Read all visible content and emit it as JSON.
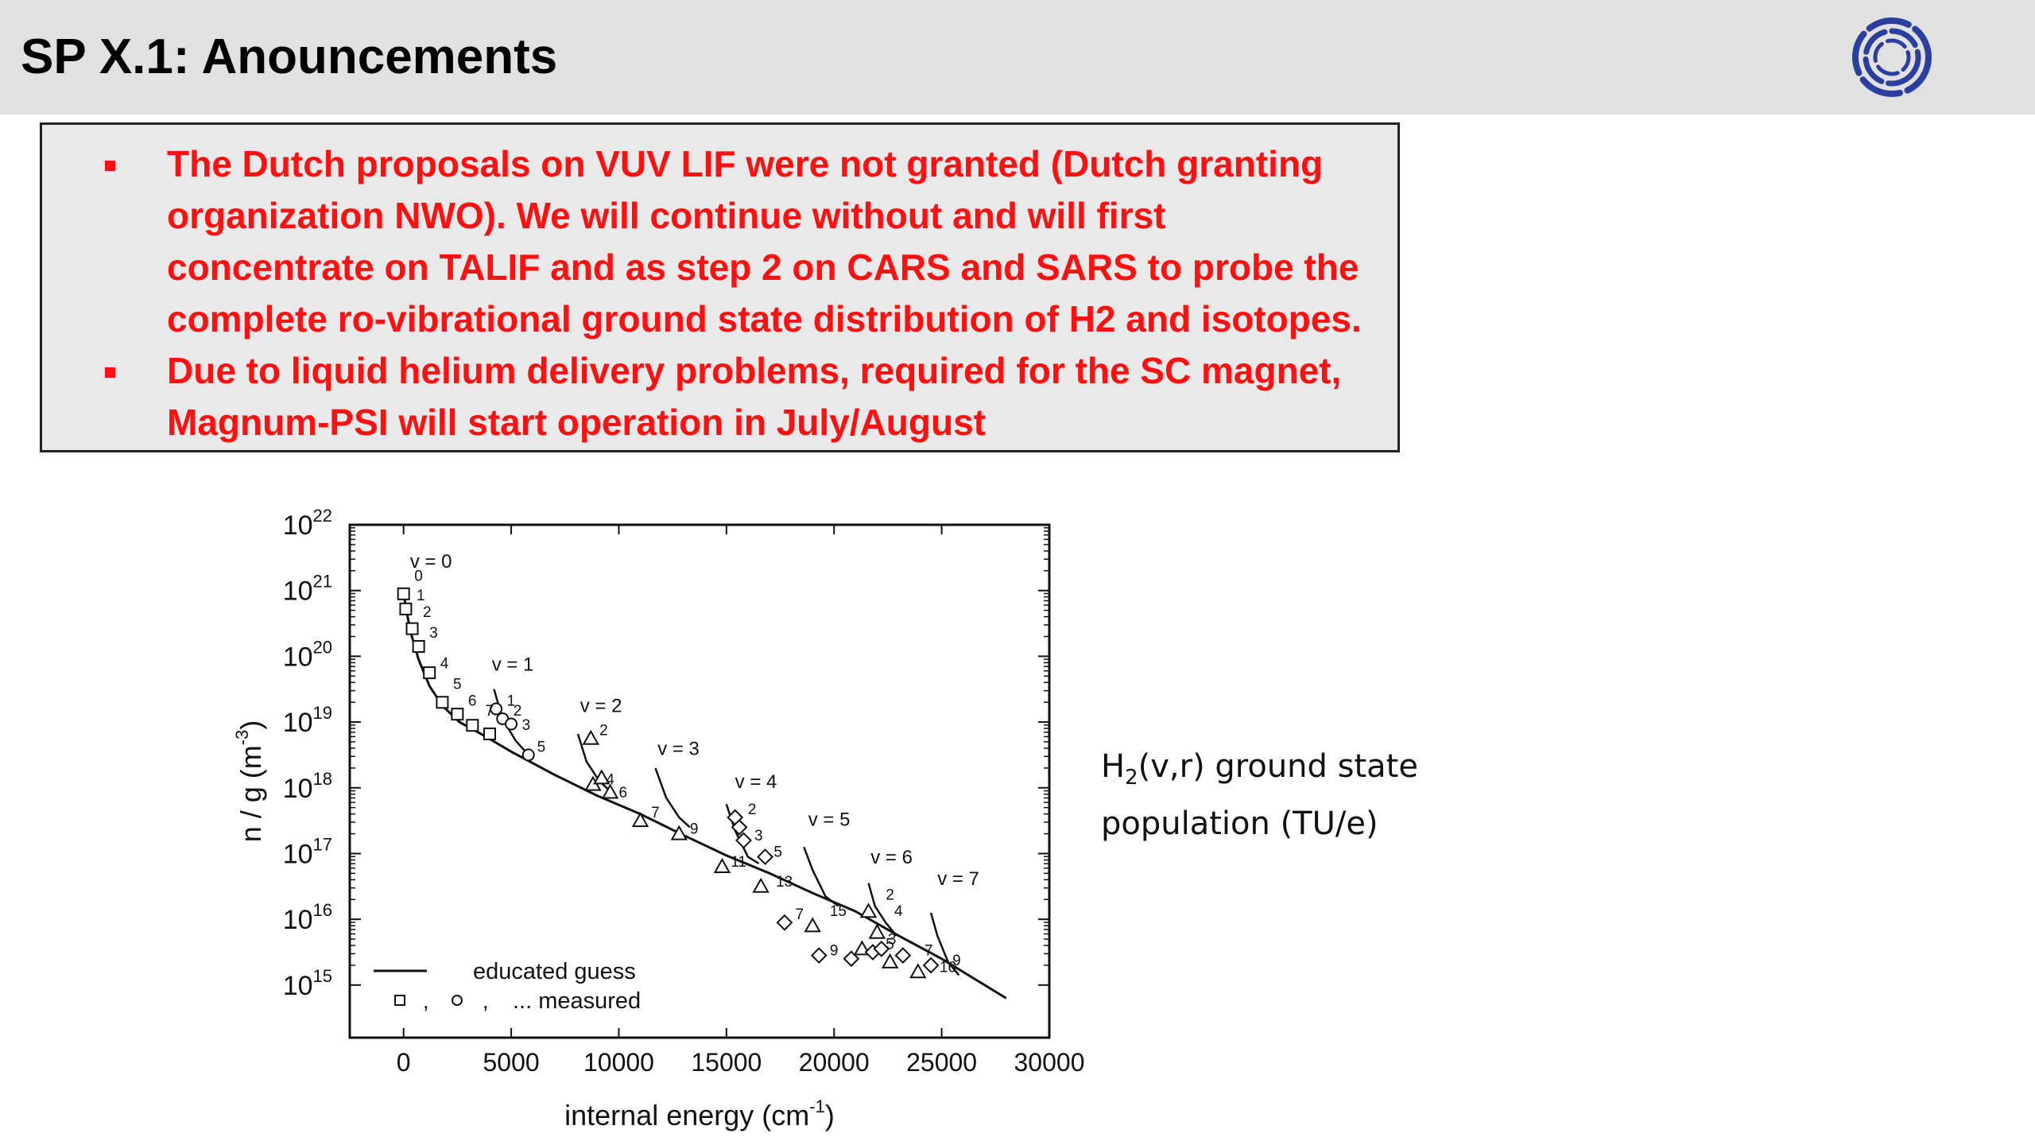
{
  "slide": {
    "title": "SP X.1: Anouncements"
  },
  "logo": {
    "icon": "ring-logo-icon",
    "color": "#2a3f9e"
  },
  "announcements": [
    {
      "text": "The Dutch proposals on VUV LIF were not granted (Dutch granting organization NWO).  We will continue without and will first concentrate on TALIF and as step 2 on CARS and SARS to probe the complete ro-vibrational ground state distribution of H2 and isotopes."
    },
    {
      "text": "Due to liquid helium delivery problems, required for the SC magnet, Magnum-PSI will start operation in July/August"
    }
  ],
  "colors": {
    "announcement_text": "#ff1010",
    "title_bar": "#e1e1e1",
    "box_background": "#e9e9e9"
  },
  "caption": {
    "line1_pre": "H",
    "line1_sub": "2",
    "line1_post": "(v,r) ground state",
    "line2": "population (TU/e)"
  },
  "chart_data": {
    "type": "scatter",
    "xlabel": "internal energy (cm",
    "xlabel_sup": "-1",
    "xlabel_end": ")",
    "ylabel": "n / g (m",
    "ylabel_sup": "-3",
    "ylabel_end": ")",
    "xlim": [
      -2500,
      30000
    ],
    "ylim_log10": [
      14.2,
      22
    ],
    "log_y": true,
    "x_ticks": [
      0,
      5000,
      10000,
      15000,
      20000,
      25000,
      30000
    ],
    "y_ticks_base": "10",
    "y_ticks_exp": [
      15,
      16,
      17,
      18,
      19,
      20,
      21,
      22
    ],
    "legend": {
      "position": "bottom-left",
      "line_label": "educated guess",
      "markers_sep": ",",
      "markers_label": "... measured"
    },
    "series": [
      {
        "name": "educated guess",
        "kind": "line",
        "points": [
          [
            0,
            20.95
          ],
          [
            300,
            20.4
          ],
          [
            700,
            19.95
          ],
          [
            1200,
            19.55
          ],
          [
            1800,
            19.25
          ],
          [
            2600,
            19.0
          ],
          [
            3600,
            18.82
          ],
          [
            5000,
            18.55
          ],
          [
            7000,
            18.2
          ],
          [
            9000,
            17.88
          ],
          [
            11000,
            17.6
          ],
          [
            13000,
            17.28
          ],
          [
            15000,
            16.97
          ],
          [
            17000,
            16.7
          ],
          [
            19000,
            16.4
          ],
          [
            21000,
            16.12
          ],
          [
            23000,
            15.75
          ],
          [
            25000,
            15.4
          ],
          [
            26500,
            15.1
          ],
          [
            28000,
            14.8
          ]
        ]
      },
      {
        "name": "v = 1",
        "kind": "branch",
        "points": [
          [
            4200,
            19.5
          ],
          [
            4600,
            19.05
          ],
          [
            5200,
            18.72
          ],
          [
            5800,
            18.5
          ]
        ]
      },
      {
        "name": "v = 2",
        "kind": "branch",
        "points": [
          [
            8100,
            18.82
          ],
          [
            8500,
            18.4
          ],
          [
            9100,
            18.1
          ],
          [
            9600,
            17.95
          ]
        ]
      },
      {
        "name": "v = 3",
        "kind": "branch",
        "points": [
          [
            11700,
            18.3
          ],
          [
            12200,
            17.85
          ],
          [
            12800,
            17.55
          ],
          [
            13300,
            17.4
          ]
        ]
      },
      {
        "name": "v = 4",
        "kind": "branch",
        "points": [
          [
            15000,
            17.75
          ],
          [
            15400,
            17.35
          ],
          [
            16000,
            16.95
          ],
          [
            16500,
            16.85
          ]
        ]
      },
      {
        "name": "v = 5",
        "kind": "branch",
        "points": [
          [
            18600,
            17.1
          ],
          [
            19000,
            16.75
          ],
          [
            19600,
            16.35
          ],
          [
            20200,
            16.2
          ]
        ]
      },
      {
        "name": "v = 6",
        "kind": "branch",
        "points": [
          [
            21600,
            16.55
          ],
          [
            21900,
            16.2
          ],
          [
            22400,
            15.95
          ],
          [
            22900,
            15.75
          ]
        ]
      },
      {
        "name": "v = 7",
        "kind": "branch",
        "points": [
          [
            24500,
            16.1
          ],
          [
            24800,
            15.75
          ],
          [
            25300,
            15.35
          ],
          [
            25800,
            15.15
          ]
        ]
      },
      {
        "name": "",
        "kind": "squares",
        "points": [
          [
            0,
            20.95
          ],
          [
            100,
            20.72
          ],
          [
            400,
            20.42
          ],
          [
            700,
            20.15
          ],
          [
            1200,
            19.75
          ],
          [
            1800,
            19.3
          ],
          [
            2500,
            19.12
          ],
          [
            3200,
            18.95
          ],
          [
            4000,
            18.82
          ]
        ]
      },
      {
        "name": "",
        "kind": "circles",
        "points": [
          [
            4300,
            19.2
          ],
          [
            4600,
            19.05
          ],
          [
            5000,
            18.97
          ],
          [
            5800,
            18.5
          ]
        ]
      },
      {
        "name": "",
        "kind": "triangles",
        "points": [
          [
            8700,
            18.75
          ],
          [
            8800,
            18.05
          ],
          [
            9200,
            18.15
          ],
          [
            9600,
            17.93
          ],
          [
            11000,
            17.5
          ],
          [
            12800,
            17.3
          ],
          [
            14800,
            16.8
          ],
          [
            16600,
            16.5
          ],
          [
            19000,
            15.9
          ],
          [
            21300,
            15.55
          ],
          [
            22600,
            15.35
          ],
          [
            23900,
            15.2
          ],
          [
            21600,
            16.12
          ],
          [
            22000,
            15.8
          ]
        ]
      },
      {
        "name": "",
        "kind": "diamonds",
        "points": [
          [
            15400,
            17.55
          ],
          [
            15600,
            17.4
          ],
          [
            15800,
            17.2
          ],
          [
            16800,
            16.95
          ],
          [
            17700,
            15.95
          ],
          [
            19300,
            15.45
          ],
          [
            20800,
            15.4
          ],
          [
            21800,
            15.5
          ],
          [
            22200,
            15.55
          ],
          [
            23200,
            15.45
          ],
          [
            24500,
            15.3
          ]
        ]
      }
    ],
    "labels": [
      {
        "text": "v = 0",
        "x": 300,
        "y": 21.35
      },
      {
        "text": "v = 1",
        "x": 4100,
        "y": 19.78
      },
      {
        "text": "v = 2",
        "x": 8200,
        "y": 19.15
      },
      {
        "text": "v = 3",
        "x": 11800,
        "y": 18.5
      },
      {
        "text": "v = 4",
        "x": 15400,
        "y": 18.0
      },
      {
        "text": "v = 5",
        "x": 18800,
        "y": 17.42
      },
      {
        "text": "v = 6",
        "x": 21700,
        "y": 16.85
      },
      {
        "text": "v = 7",
        "x": 24800,
        "y": 16.52
      },
      {
        "text": "0",
        "x": 500,
        "y": 21.15
      },
      {
        "text": "1",
        "x": 600,
        "y": 20.85
      },
      {
        "text": "2",
        "x": 900,
        "y": 20.6
      },
      {
        "text": "3",
        "x": 1200,
        "y": 20.28
      },
      {
        "text": "4",
        "x": 1700,
        "y": 19.82
      },
      {
        "text": "5",
        "x": 2300,
        "y": 19.5
      },
      {
        "text": "6",
        "x": 3000,
        "y": 19.25
      },
      {
        "text": "7",
        "x": 3800,
        "y": 19.1
      },
      {
        "text": "1",
        "x": 4800,
        "y": 19.25
      },
      {
        "text": "2",
        "x": 5100,
        "y": 19.1
      },
      {
        "text": "3",
        "x": 5500,
        "y": 18.88
      },
      {
        "text": "5",
        "x": 6200,
        "y": 18.55
      },
      {
        "text": "2",
        "x": 9100,
        "y": 18.8
      },
      {
        "text": "4",
        "x": 9400,
        "y": 18.05
      },
      {
        "text": "6",
        "x": 10000,
        "y": 17.85
      },
      {
        "text": "7",
        "x": 11500,
        "y": 17.55
      },
      {
        "text": "9",
        "x": 13300,
        "y": 17.3
      },
      {
        "text": "11",
        "x": 15200,
        "y": 16.8
      },
      {
        "text": "2",
        "x": 16000,
        "y": 17.6
      },
      {
        "text": "3",
        "x": 16300,
        "y": 17.2
      },
      {
        "text": "5",
        "x": 17200,
        "y": 16.95
      },
      {
        "text": "13",
        "x": 17300,
        "y": 16.5
      },
      {
        "text": "7",
        "x": 18200,
        "y": 16.0
      },
      {
        "text": "15",
        "x": 19800,
        "y": 16.05
      },
      {
        "text": "9",
        "x": 19800,
        "y": 15.45
      },
      {
        "text": "2",
        "x": 22400,
        "y": 16.3
      },
      {
        "text": "4",
        "x": 22800,
        "y": 16.05
      },
      {
        "text": "3",
        "x": 22500,
        "y": 15.62
      },
      {
        "text": "5",
        "x": 22400,
        "y": 15.55
      },
      {
        "text": "7",
        "x": 24200,
        "y": 15.45
      },
      {
        "text": "9",
        "x": 25500,
        "y": 15.3
      },
      {
        "text": "16",
        "x": 24900,
        "y": 15.2
      }
    ]
  }
}
